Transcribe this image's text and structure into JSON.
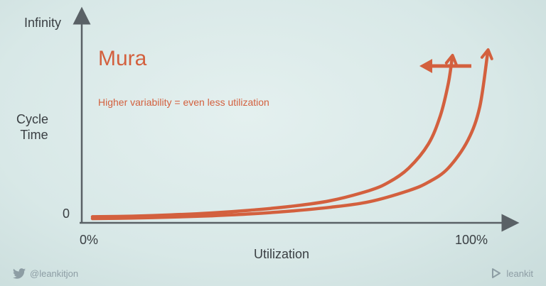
{
  "slide": {
    "footer_left": "@leankitjon",
    "footer_right": "leankit",
    "footer_left_icon": "twitter-bird-icon",
    "footer_right_icon": "leankit-logo-icon"
  },
  "chart_data": {
    "type": "line",
    "title": "Mura",
    "subtitle": "Higher variability = even less utilization",
    "xlabel": "Utilization",
    "ylabel": "Cycle Time",
    "x_tick_labels": [
      "0%",
      "100%"
    ],
    "y_tick_labels": [
      "0",
      "Infinity"
    ],
    "grid": false,
    "annotation": "left-pointing arrow from right curve toward left curve",
    "colors": {
      "curve": "#d3603e",
      "title": "#d3603e",
      "axis": "#3a3f43"
    },
    "series": [
      {
        "x": [
          0,
          10,
          20,
          30,
          40,
          50,
          60,
          70,
          75,
          80,
          85,
          88,
          90,
          91
        ],
        "y": [
          1,
          1.3,
          2,
          3,
          4.5,
          6.5,
          9.5,
          15,
          19.5,
          27,
          40,
          55,
          72,
          86
        ]
      },
      {
        "x": [
          0,
          10,
          20,
          30,
          40,
          50,
          60,
          70,
          80,
          85,
          90,
          95,
          98,
          100
        ],
        "y": [
          0,
          0.3,
          0.8,
          1.5,
          2.5,
          4,
          6,
          9,
          15,
          19.5,
          27,
          42,
          60,
          89
        ]
      }
    ]
  }
}
